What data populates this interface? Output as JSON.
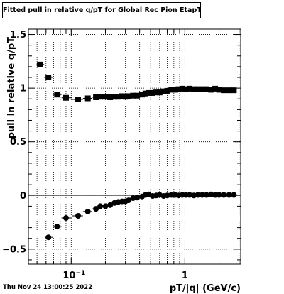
{
  "chart_data": {
    "type": "scatter",
    "title": "Fitted pull in relative q/pT for Global Rec Pion EtapT",
    "xlabel": "pT/|q| (GeV/c)",
    "ylabel": "pull in relative q/pT",
    "x_scale": "log",
    "xlim": [
      0.042,
      3.1
    ],
    "ylim": [
      -0.64,
      1.55
    ],
    "grid": true,
    "y_ticks": [
      {
        "value": -0.5,
        "label": "−0.5"
      },
      {
        "value": 0,
        "label": "0"
      },
      {
        "value": 0.5,
        "label": "0.5"
      },
      {
        "value": 1,
        "label": "1"
      },
      {
        "value": 1.5,
        "label": "1.5"
      }
    ],
    "x_ticks": [
      {
        "value": 0.1,
        "label": "10",
        "exponent": "−1"
      },
      {
        "value": 1,
        "label": "1",
        "exponent": ""
      }
    ],
    "reference_line": {
      "y": 0,
      "color": "#ff0000"
    },
    "series": [
      {
        "marker": "square",
        "color": "#000000",
        "points": [
          [
            0.053,
            1.22
          ],
          [
            0.063,
            1.1
          ],
          [
            0.075,
            0.94
          ],
          [
            0.09,
            0.91
          ],
          [
            0.115,
            0.895
          ],
          [
            0.14,
            0.905
          ],
          [
            0.165,
            0.915
          ],
          [
            0.18,
            0.92
          ],
          [
            0.2,
            0.92
          ],
          [
            0.22,
            0.915
          ],
          [
            0.24,
            0.92
          ],
          [
            0.26,
            0.92
          ],
          [
            0.28,
            0.925
          ],
          [
            0.3,
            0.92
          ],
          [
            0.32,
            0.925
          ],
          [
            0.35,
            0.93
          ],
          [
            0.38,
            0.93
          ],
          [
            0.42,
            0.94
          ],
          [
            0.45,
            0.95
          ],
          [
            0.48,
            0.955
          ],
          [
            0.52,
            0.955
          ],
          [
            0.56,
            0.96
          ],
          [
            0.6,
            0.96
          ],
          [
            0.65,
            0.97
          ],
          [
            0.7,
            0.975
          ],
          [
            0.76,
            0.985
          ],
          [
            0.82,
            0.985
          ],
          [
            0.88,
            0.99
          ],
          [
            0.95,
            0.995
          ],
          [
            1.02,
            0.99
          ],
          [
            1.1,
            0.995
          ],
          [
            1.2,
            0.99
          ],
          [
            1.3,
            0.99
          ],
          [
            1.42,
            0.99
          ],
          [
            1.55,
            0.99
          ],
          [
            1.7,
            0.985
          ],
          [
            1.85,
            0.995
          ],
          [
            2.0,
            0.985
          ],
          [
            2.2,
            0.98
          ],
          [
            2.45,
            0.98
          ],
          [
            2.7,
            0.98
          ]
        ]
      },
      {
        "marker": "circle",
        "color": "#000000",
        "points": [
          [
            0.063,
            -0.39
          ],
          [
            0.075,
            -0.29
          ],
          [
            0.09,
            -0.21
          ],
          [
            0.115,
            -0.19
          ],
          [
            0.14,
            -0.15
          ],
          [
            0.165,
            -0.125
          ],
          [
            0.18,
            -0.1
          ],
          [
            0.2,
            -0.1
          ],
          [
            0.22,
            -0.09
          ],
          [
            0.24,
            -0.07
          ],
          [
            0.26,
            -0.06
          ],
          [
            0.28,
            -0.055
          ],
          [
            0.3,
            -0.055
          ],
          [
            0.32,
            -0.045
          ],
          [
            0.35,
            -0.025
          ],
          [
            0.38,
            -0.02
          ],
          [
            0.42,
            -0.01
          ],
          [
            0.45,
            0.005
          ],
          [
            0.48,
            0.01
          ],
          [
            0.52,
            -0.005
          ],
          [
            0.56,
            0.0
          ],
          [
            0.6,
            0.005
          ],
          [
            0.65,
            -0.005
          ],
          [
            0.7,
            0.0
          ],
          [
            0.76,
            0.005
          ],
          [
            0.82,
            0.005
          ],
          [
            0.88,
            0.0
          ],
          [
            0.95,
            0.005
          ],
          [
            1.02,
            0.005
          ],
          [
            1.1,
            0.005
          ],
          [
            1.2,
            0.0
          ],
          [
            1.3,
            0.005
          ],
          [
            1.42,
            0.005
          ],
          [
            1.55,
            0.005
          ],
          [
            1.7,
            0.01
          ],
          [
            1.85,
            0.005
          ],
          [
            2.0,
            0.005
          ],
          [
            2.2,
            0.005
          ],
          [
            2.45,
            0.005
          ],
          [
            2.7,
            0.005
          ]
        ]
      }
    ]
  },
  "footer": {
    "timestamp": "Thu Nov 24 13:00:25 2022"
  }
}
